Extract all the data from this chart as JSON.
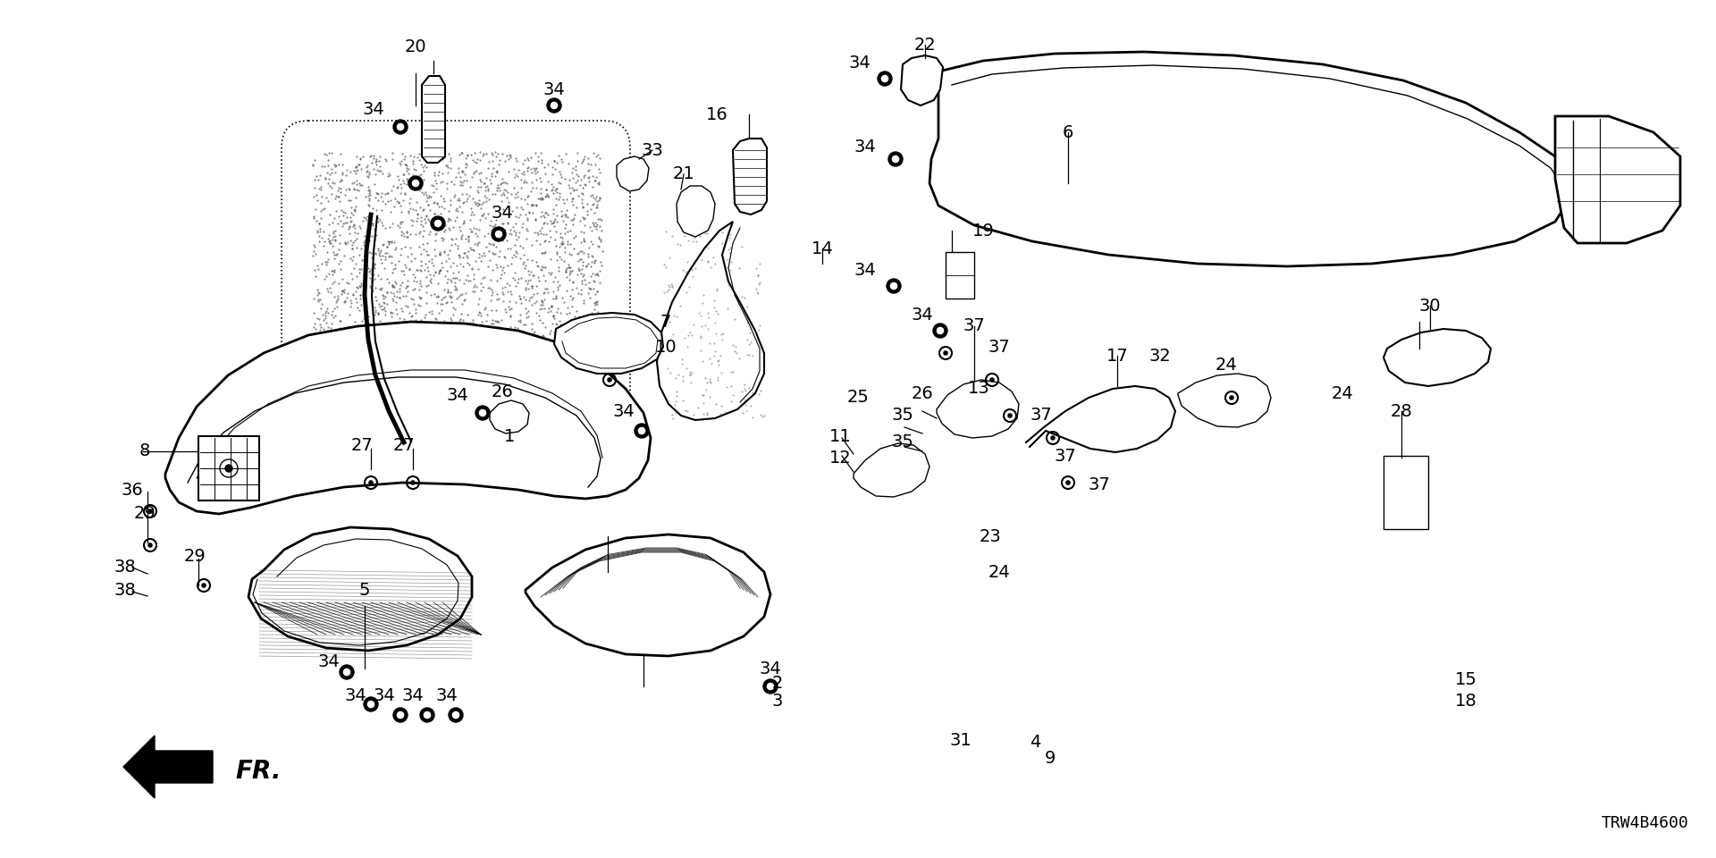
{
  "title": "",
  "diagram_code": "TRW4B4600",
  "bg_color": "#ffffff",
  "figsize": [
    19.2,
    9.6
  ],
  "dpi": 100
}
